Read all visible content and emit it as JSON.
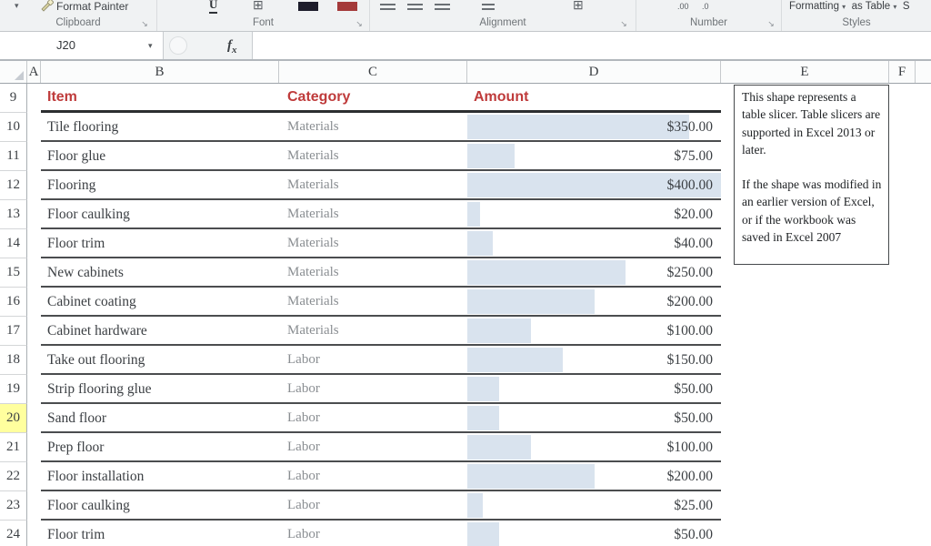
{
  "ribbon": {
    "groups": [
      {
        "label": "Clipboard"
      },
      {
        "label": "Font"
      },
      {
        "label": "Alignment"
      },
      {
        "label": "Number"
      },
      {
        "label": "Styles"
      }
    ],
    "format_painter_label": "Format Painter",
    "styles_buttons": [
      "Formatting",
      "as Table",
      "S"
    ]
  },
  "formula_bar": {
    "name_box": "J20",
    "fx_label": "f",
    "fx_sub": "x",
    "formula_value": ""
  },
  "sheet": {
    "column_headers": [
      "A",
      "B",
      "C",
      "D",
      "E",
      "F"
    ],
    "header_row": {
      "row_number": "9",
      "cells": [
        "Item",
        "Category",
        "Amount"
      ]
    },
    "bar_max": 400,
    "rows": [
      {
        "row_number": "10",
        "item": "Tile flooring",
        "category": "Materials",
        "amount": "$350.00",
        "value": 350,
        "active": false
      },
      {
        "row_number": "11",
        "item": "Floor glue",
        "category": "Materials",
        "amount": "$75.00",
        "value": 75,
        "active": false
      },
      {
        "row_number": "12",
        "item": "Flooring",
        "category": "Materials",
        "amount": "$400.00",
        "value": 400,
        "active": false
      },
      {
        "row_number": "13",
        "item": "Floor caulking",
        "category": "Materials",
        "amount": "$20.00",
        "value": 20,
        "active": false
      },
      {
        "row_number": "14",
        "item": "Floor trim",
        "category": "Materials",
        "amount": "$40.00",
        "value": 40,
        "active": false
      },
      {
        "row_number": "15",
        "item": "New cabinets",
        "category": "Materials",
        "amount": "$250.00",
        "value": 250,
        "active": false
      },
      {
        "row_number": "16",
        "item": "Cabinet coating",
        "category": "Materials",
        "amount": "$200.00",
        "value": 200,
        "active": false
      },
      {
        "row_number": "17",
        "item": "Cabinet hardware",
        "category": "Materials",
        "amount": "$100.00",
        "value": 100,
        "active": false
      },
      {
        "row_number": "18",
        "item": "Take out flooring",
        "category": "Labor",
        "amount": "$150.00",
        "value": 150,
        "active": false
      },
      {
        "row_number": "19",
        "item": "Strip flooring glue",
        "category": "Labor",
        "amount": "$50.00",
        "value": 50,
        "active": false
      },
      {
        "row_number": "20",
        "item": "Sand floor",
        "category": "Labor",
        "amount": "$50.00",
        "value": 50,
        "active": true
      },
      {
        "row_number": "21",
        "item": "Prep floor",
        "category": "Labor",
        "amount": "$100.00",
        "value": 100,
        "active": false
      },
      {
        "row_number": "22",
        "item": "Floor installation",
        "category": "Labor",
        "amount": "$200.00",
        "value": 200,
        "active": false
      },
      {
        "row_number": "23",
        "item": "Floor caulking",
        "category": "Labor",
        "amount": "$25.00",
        "value": 25,
        "active": false
      },
      {
        "row_number": "24",
        "item": "Floor trim",
        "category": "Labor",
        "amount": "$50.00",
        "value": 50,
        "active": false
      }
    ]
  },
  "textbox": {
    "paragraph1": "This shape represents a table slicer. Table slicers are supported in Excel 2013 or later.",
    "paragraph2": "If the shape was modified in an earlier version of Excel, or if the workbook was saved in Excel 2007"
  },
  "colors": {
    "header_text": "#bf3b3b",
    "data_bar": "#d9e3ee",
    "active_row_highlight": "#ffff9e",
    "fill_swatch": "#a43a3a",
    "font_swatch": "#1d1d2b"
  }
}
